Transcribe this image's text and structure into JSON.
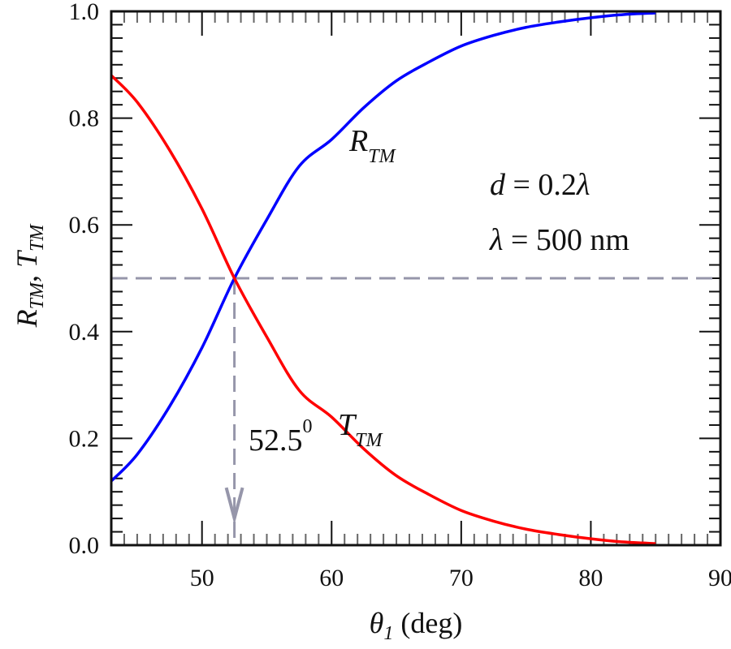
{
  "chart_data": {
    "type": "line",
    "title": "",
    "xlabel": {
      "symbol": "θ",
      "sub": "1",
      "rest": " (deg)"
    },
    "ylabel": {
      "r": "R",
      "r_sub": "TM",
      "sep": ", ",
      "t": "T",
      "t_sub": "TM"
    },
    "xlim": [
      43,
      90
    ],
    "ylim": [
      0,
      1
    ],
    "x_ticks": [
      50,
      60,
      70,
      80,
      90
    ],
    "x_tick_labels": [
      "50",
      "60",
      "70",
      "80",
      "90"
    ],
    "y_ticks": [
      0,
      0.2,
      0.4,
      0.6,
      0.8,
      1.0
    ],
    "y_tick_labels": [
      "0.0",
      "0.2",
      "0.4",
      "0.6",
      "0.8",
      "1.0"
    ],
    "grid": false,
    "series": [
      {
        "name": "R_TM",
        "color": "#0000ff",
        "x": [
          43,
          45,
          47.5,
          50,
          52.5,
          55,
          57.5,
          60,
          62.5,
          65,
          67.5,
          70,
          72.5,
          75,
          77.5,
          80,
          82.5,
          85
        ],
        "y": [
          0.12,
          0.17,
          0.26,
          0.37,
          0.5,
          0.61,
          0.71,
          0.76,
          0.82,
          0.87,
          0.905,
          0.935,
          0.955,
          0.97,
          0.98,
          0.988,
          0.994,
          0.997
        ]
      },
      {
        "name": "T_TM",
        "color": "#ff0000",
        "x": [
          43,
          45,
          47.5,
          50,
          52.5,
          55,
          57.5,
          60,
          62.5,
          65,
          67.5,
          70,
          72.5,
          75,
          77.5,
          80,
          82.5,
          85
        ],
        "y": [
          0.88,
          0.83,
          0.74,
          0.63,
          0.5,
          0.39,
          0.29,
          0.24,
          0.18,
          0.13,
          0.095,
          0.065,
          0.045,
          0.03,
          0.02,
          0.012,
          0.006,
          0.003
        ]
      }
    ],
    "reference_lines": {
      "color": "#9696aa",
      "y": 0.5,
      "x": 52.5
    },
    "annotations": {
      "r_label": {
        "main": "R",
        "sub": "TM"
      },
      "t_label": {
        "main": "T",
        "sub": "TM"
      },
      "angle_label": {
        "value": "52.5",
        "sup": "0"
      },
      "thickness": {
        "var": "d",
        "rest": " = 0.2",
        "lambda": "λ"
      },
      "wavelength": {
        "lambda": "λ",
        "rest": " = 500 nm"
      }
    }
  }
}
